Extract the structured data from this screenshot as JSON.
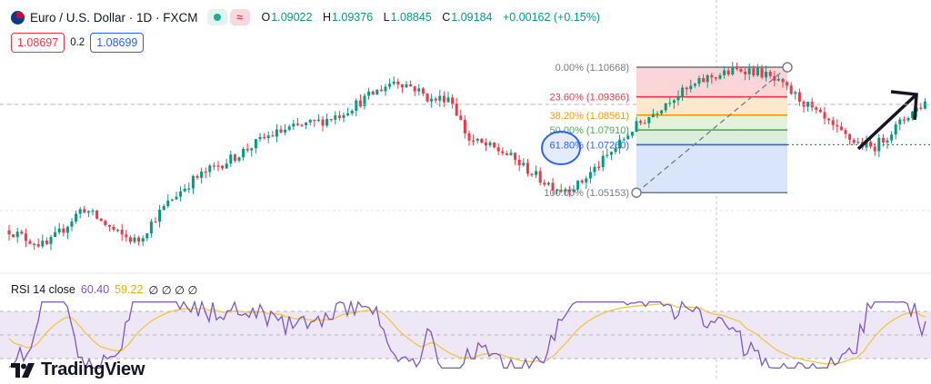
{
  "header": {
    "symbol": "Euro / U.S. Dollar · 1D · FXCM",
    "open_label": "O",
    "open": "1.09022",
    "high_label": "H",
    "high": "1.09376",
    "low_label": "L",
    "low": "1.08845",
    "close_label": "C",
    "close": "1.09184",
    "change": "+0.00162 (+0.15%)",
    "eq_icon": "≈"
  },
  "prices": {
    "sell": "1.08697",
    "spread": "0.2",
    "buy": "1.08699"
  },
  "rsi": {
    "label": "RSI 14 close",
    "value": "60.40",
    "ma_value": "59.22",
    "empties": "∅ ∅ ∅ ∅",
    "colors": {
      "line": "#7e57c2",
      "ma": "#f5c542",
      "band": "#ede7f6"
    }
  },
  "fibonacci": {
    "levels": [
      {
        "label": "0.00% (1.10668)",
        "price": 1.10668,
        "color": "#787b86"
      },
      {
        "label": "23.60% (1.09366)",
        "price": 1.09366,
        "color": "#f23645"
      },
      {
        "label": "38.20% (1.08561)",
        "price": 1.08561,
        "color": "#ff9800"
      },
      {
        "label": "50.00% (1.07910)",
        "price": 1.0791,
        "color": "#4caf50"
      },
      {
        "label": "61.80% (1.07260)",
        "price": 1.0726,
        "color": "#2962ff"
      },
      {
        "label": "100.00% (1.05153)",
        "price": 1.05153,
        "color": "#787b86"
      }
    ]
  },
  "brand": "TradingView",
  "chart_data": {
    "type": "candlestick",
    "instrument": "Euro / U.S. Dollar",
    "timeframe": "1D",
    "last_close": 1.09184,
    "colors": {
      "up": "#089981",
      "down": "#f23645"
    },
    "fib_retracement": {
      "high": 1.10668,
      "low": 1.05153
    },
    "close_series_approx": [
      1.035,
      1.031,
      1.028,
      1.036,
      1.045,
      1.039,
      1.033,
      1.03,
      1.041,
      1.05,
      1.057,
      1.062,
      1.066,
      1.071,
      1.076,
      1.079,
      1.081,
      1.083,
      1.086,
      1.091,
      1.096,
      1.101,
      1.098,
      1.092,
      1.094,
      1.075,
      1.072,
      1.069,
      1.063,
      1.057,
      1.053,
      1.055,
      1.063,
      1.071,
      1.08,
      1.086,
      1.093,
      1.097,
      1.102,
      1.104,
      1.106,
      1.104,
      1.099,
      1.093,
      1.086,
      1.079,
      1.074,
      1.071,
      1.078,
      1.086,
      1.092
    ],
    "rsi_14": 60.4,
    "rsi_ma": 59.22
  }
}
